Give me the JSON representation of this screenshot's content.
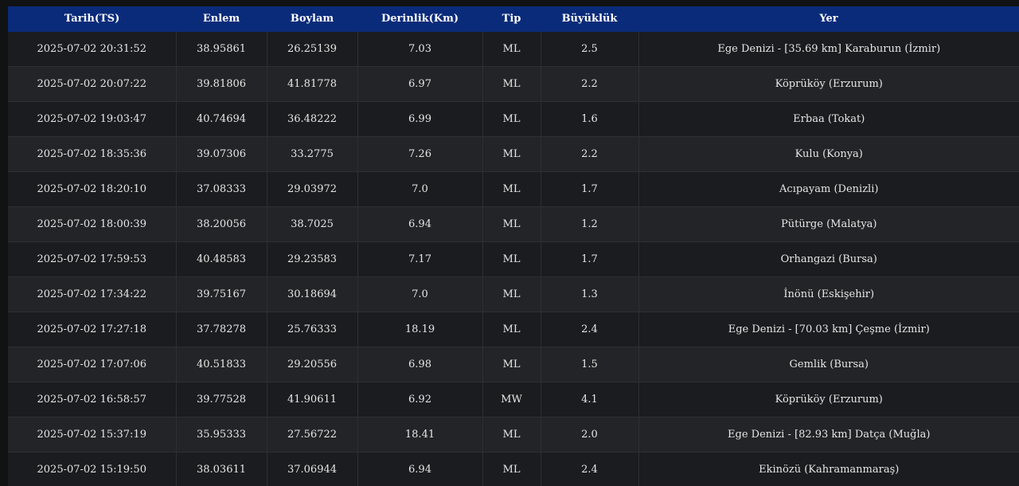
{
  "table": {
    "headers": [
      "Tarih(TS)",
      "Enlem",
      "Boylam",
      "Derinlik(Km)",
      "Tip",
      "Büyüklük",
      "Yer"
    ],
    "rows": [
      [
        "2025-07-02 20:31:52",
        "38.95861",
        "26.25139",
        "7.03",
        "ML",
        "2.5",
        "Ege Denizi - [35.69 km] Karaburun (İzmir)"
      ],
      [
        "2025-07-02 20:07:22",
        "39.81806",
        "41.81778",
        "6.97",
        "ML",
        "2.2",
        "Köprüköy (Erzurum)"
      ],
      [
        "2025-07-02 19:03:47",
        "40.74694",
        "36.48222",
        "6.99",
        "ML",
        "1.6",
        "Erbaa (Tokat)"
      ],
      [
        "2025-07-02 18:35:36",
        "39.07306",
        "33.2775",
        "7.26",
        "ML",
        "2.2",
        "Kulu (Konya)"
      ],
      [
        "2025-07-02 18:20:10",
        "37.08333",
        "29.03972",
        "7.0",
        "ML",
        "1.7",
        "Acıpayam (Denizli)"
      ],
      [
        "2025-07-02 18:00:39",
        "38.20056",
        "38.7025",
        "6.94",
        "ML",
        "1.2",
        "Pütürge (Malatya)"
      ],
      [
        "2025-07-02 17:59:53",
        "40.48583",
        "29.23583",
        "7.17",
        "ML",
        "1.7",
        "Orhangazi (Bursa)"
      ],
      [
        "2025-07-02 17:34:22",
        "39.75167",
        "30.18694",
        "7.0",
        "ML",
        "1.3",
        "İnönü (Eskişehir)"
      ],
      [
        "2025-07-02 17:27:18",
        "37.78278",
        "25.76333",
        "18.19",
        "ML",
        "2.4",
        "Ege Denizi - [70.03 km] Çeşme (İzmir)"
      ],
      [
        "2025-07-02 17:07:06",
        "40.51833",
        "29.20556",
        "6.98",
        "ML",
        "1.5",
        "Gemlik (Bursa)"
      ],
      [
        "2025-07-02 16:58:57",
        "39.77528",
        "41.90611",
        "6.92",
        "MW",
        "4.1",
        "Köprüköy (Erzurum)"
      ],
      [
        "2025-07-02 15:37:19",
        "35.95333",
        "27.56722",
        "18.41",
        "ML",
        "2.0",
        "Ege Denizi - [82.93 km] Datça (Muğla)"
      ],
      [
        "2025-07-02 15:19:50",
        "38.03611",
        "37.06944",
        "6.94",
        "ML",
        "2.4",
        "Ekinözü (Kahramanmaraş)"
      ]
    ]
  },
  "colors": {
    "header_bg": "#0a2b7a",
    "row_odd": "#1b1c1f",
    "row_even": "#232427",
    "text": "#e6e6e6"
  }
}
